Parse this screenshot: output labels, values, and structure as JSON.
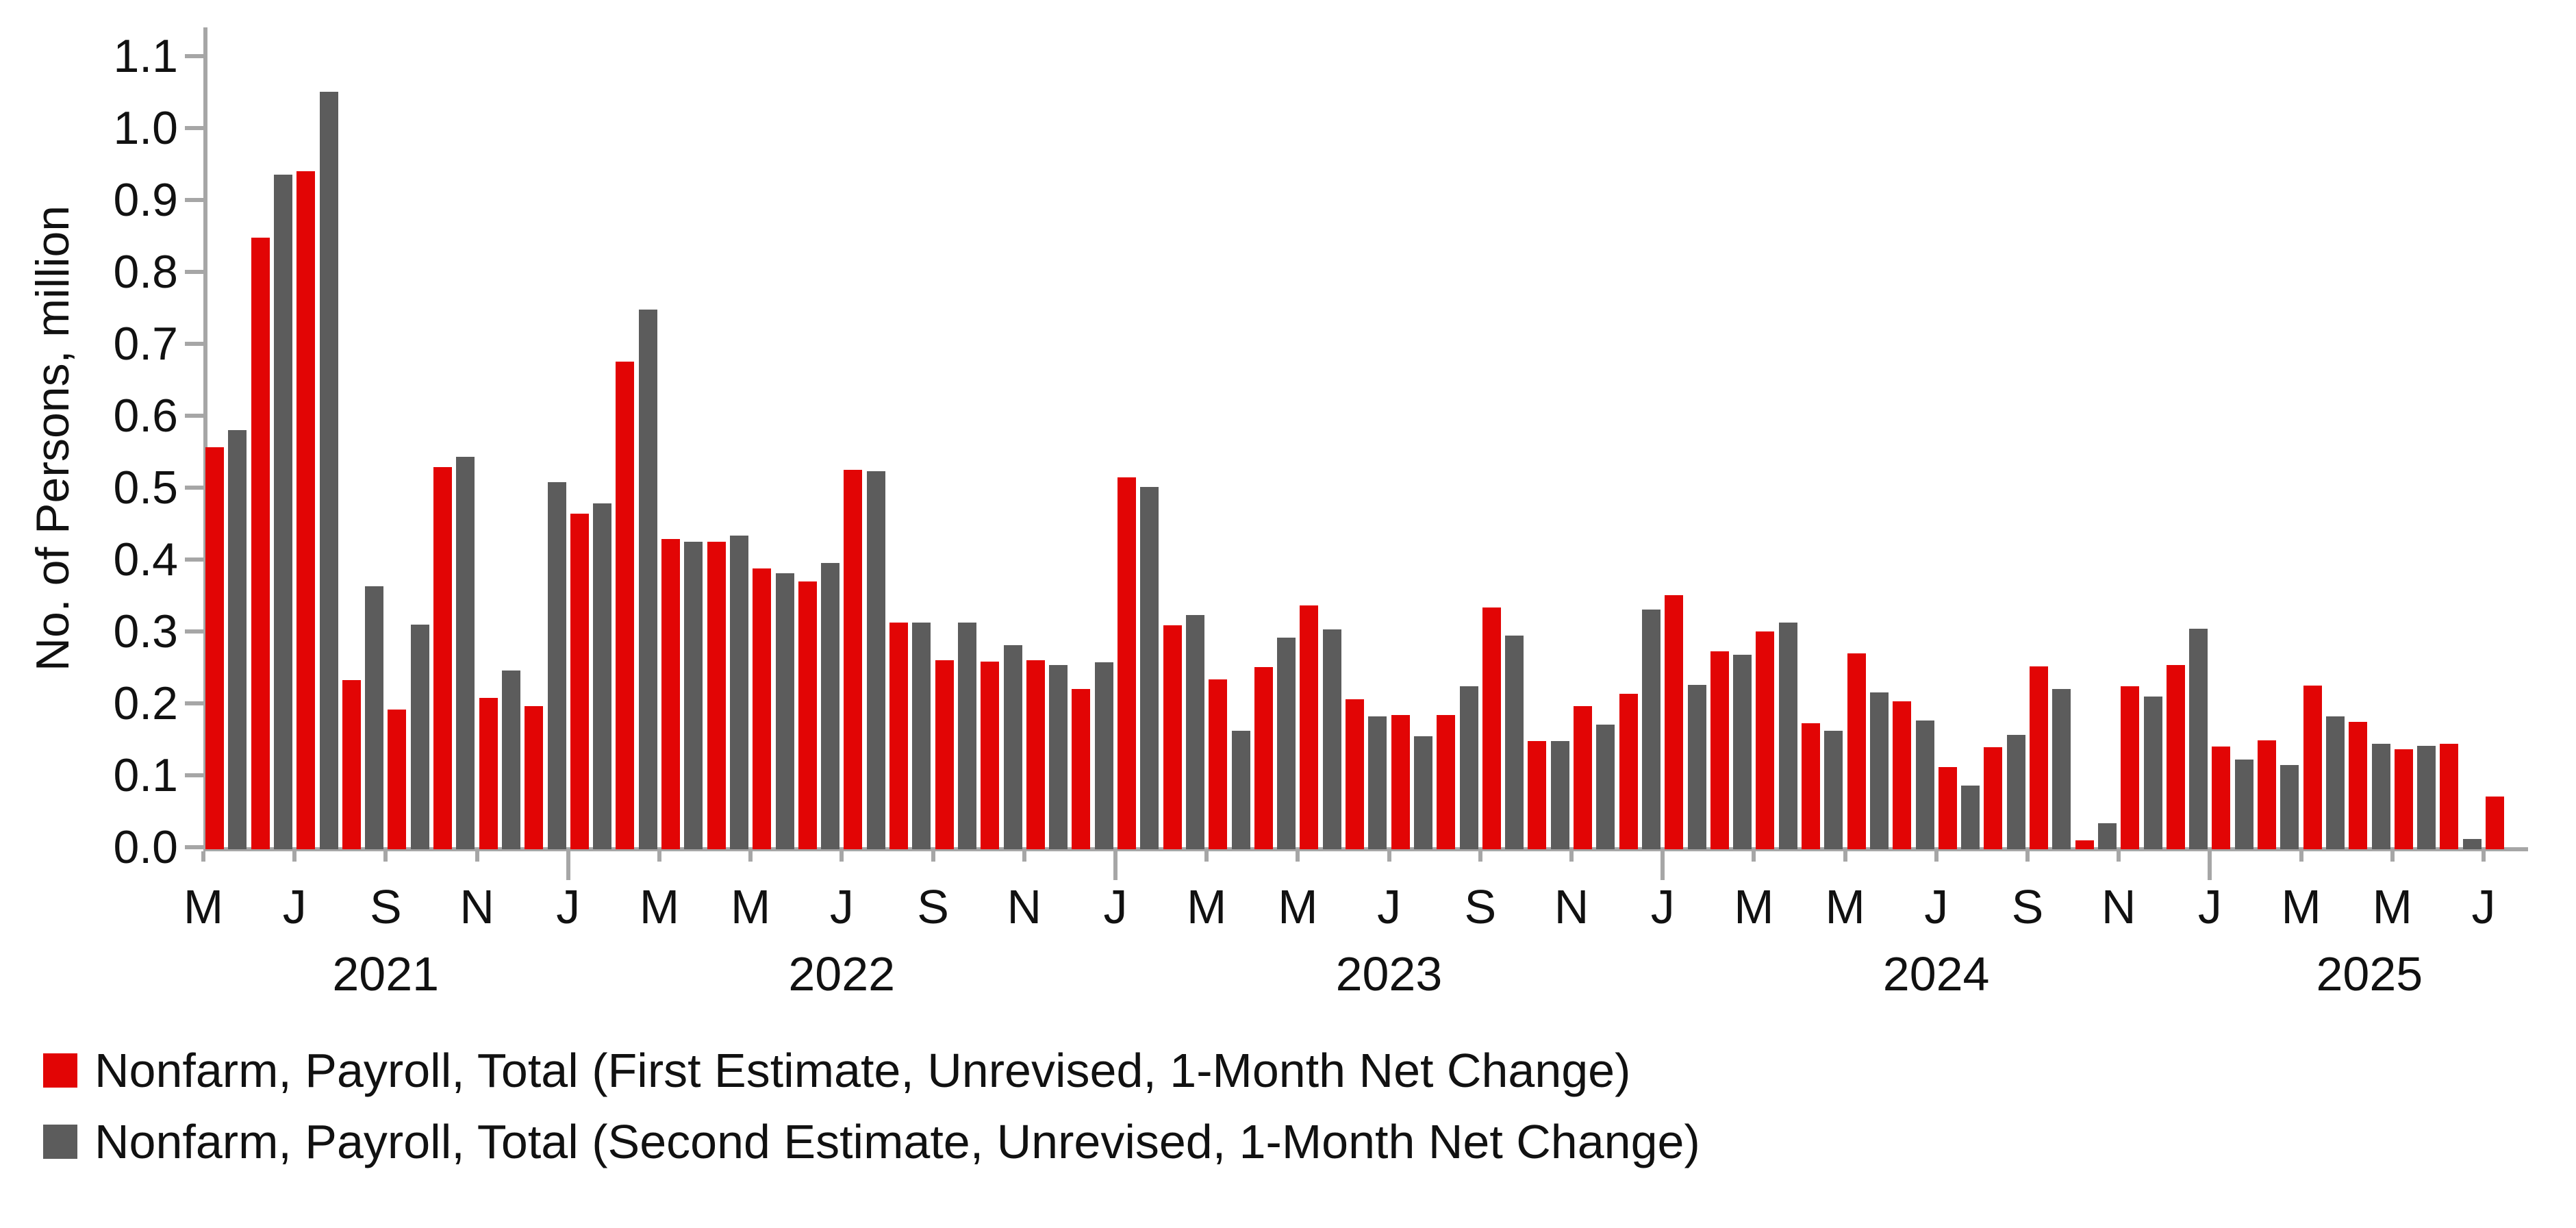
{
  "chart_data": {
    "type": "bar",
    "title": "",
    "xlabel": "",
    "ylabel": "No. of Persons, million",
    "ylim": [
      0,
      1.14
    ],
    "grid": false,
    "legend_position": "bottom-left",
    "background_color": "#ffffff",
    "axis_color": "#a6a6a6",
    "text_color": "#111111",
    "y_ticks": [
      "0.0",
      "0.1",
      "0.2",
      "0.3",
      "0.4",
      "0.5",
      "0.6",
      "0.7",
      "0.8",
      "0.9",
      "1.0",
      "1.1"
    ],
    "categories": [
      "May 2021",
      "Jun 2021",
      "Jul 2021",
      "Aug 2021",
      "Sep 2021",
      "Oct 2021",
      "Nov 2021",
      "Dec 2021",
      "Jan 2022",
      "Feb 2022",
      "Mar 2022",
      "Apr 2022",
      "May 2022",
      "Jun 2022",
      "Jul 2022",
      "Aug 2022",
      "Sep 2022",
      "Oct 2022",
      "Nov 2022",
      "Dec 2022",
      "Jan 2023",
      "Feb 2023",
      "Mar 2023",
      "Apr 2023",
      "May 2023",
      "Jun 2023",
      "Jul 2023",
      "Aug 2023",
      "Sep 2023",
      "Oct 2023",
      "Nov 2023",
      "Dec 2023",
      "Jan 2024",
      "Feb 2024",
      "Mar 2024",
      "Apr 2024",
      "May 2024",
      "Jun 2024",
      "Jul 2024",
      "Aug 2024",
      "Sep 2024",
      "Oct 2024",
      "Nov 2024",
      "Dec 2024",
      "Jan 2025",
      "Feb 2025",
      "Mar 2025",
      "Apr 2025",
      "May 2025",
      "Jun 2025",
      "Jul 2025"
    ],
    "x_ticks": [
      {
        "i": 0,
        "label": "M",
        "major": false
      },
      {
        "i": 2,
        "label": "J",
        "major": false
      },
      {
        "i": 4,
        "label": "S",
        "major": false
      },
      {
        "i": 6,
        "label": "N",
        "major": false
      },
      {
        "i": 8,
        "label": "J",
        "major": true
      },
      {
        "i": 10,
        "label": "M",
        "major": false
      },
      {
        "i": 12,
        "label": "M",
        "major": false
      },
      {
        "i": 14,
        "label": "J",
        "major": false
      },
      {
        "i": 16,
        "label": "S",
        "major": false
      },
      {
        "i": 18,
        "label": "N",
        "major": false
      },
      {
        "i": 20,
        "label": "J",
        "major": true
      },
      {
        "i": 22,
        "label": "M",
        "major": false
      },
      {
        "i": 24,
        "label": "M",
        "major": false
      },
      {
        "i": 26,
        "label": "J",
        "major": false
      },
      {
        "i": 28,
        "label": "S",
        "major": false
      },
      {
        "i": 30,
        "label": "N",
        "major": false
      },
      {
        "i": 32,
        "label": "J",
        "major": true
      },
      {
        "i": 34,
        "label": "M",
        "major": false
      },
      {
        "i": 36,
        "label": "M",
        "major": false
      },
      {
        "i": 38,
        "label": "J",
        "major": false
      },
      {
        "i": 40,
        "label": "S",
        "major": false
      },
      {
        "i": 42,
        "label": "N",
        "major": false
      },
      {
        "i": 44,
        "label": "J",
        "major": true
      },
      {
        "i": 46,
        "label": "M",
        "major": false
      },
      {
        "i": 48,
        "label": "M",
        "major": false
      },
      {
        "i": 50,
        "label": "J",
        "major": false
      }
    ],
    "year_labels": [
      {
        "label": "2021",
        "from": 0,
        "to": 7
      },
      {
        "label": "2022",
        "from": 8,
        "to": 19
      },
      {
        "label": "2023",
        "from": 20,
        "to": 31
      },
      {
        "label": "2024",
        "from": 32,
        "to": 43
      },
      {
        "label": "2025",
        "from": 44,
        "to": 50
      }
    ],
    "series": [
      {
        "name": "Nonfarm, Payroll, Total (First Estimate, Unrevised, 1-Month Net Change)",
        "color": "#e20505",
        "values": [
          0.559,
          0.85,
          0.943,
          0.235,
          0.194,
          0.531,
          0.21,
          0.199,
          0.467,
          0.678,
          0.431,
          0.428,
          0.39,
          0.372,
          0.528,
          0.315,
          0.263,
          0.261,
          0.263,
          0.223,
          0.517,
          0.311,
          0.236,
          0.253,
          0.339,
          0.209,
          0.187,
          0.187,
          0.336,
          0.15,
          0.199,
          0.216,
          0.353,
          0.275,
          0.303,
          0.175,
          0.272,
          0.206,
          0.114,
          0.142,
          0.254,
          0.012,
          0.227,
          0.256,
          0.143,
          0.151,
          0.228,
          0.177,
          0.139,
          0.147,
          0.073
        ]
      },
      {
        "name": "Nonfarm, Payroll, Total (Second Estimate, Unrevised, 1-Month Net Change)",
        "color": "#5c5c5c",
        "values": [
          0.583,
          0.938,
          1.053,
          0.366,
          0.312,
          0.546,
          0.249,
          0.51,
          0.481,
          0.75,
          0.428,
          0.436,
          0.384,
          0.398,
          0.526,
          0.315,
          0.315,
          0.284,
          0.256,
          0.26,
          0.504,
          0.326,
          0.165,
          0.294,
          0.306,
          0.185,
          0.157,
          0.227,
          0.297,
          0.15,
          0.173,
          0.333,
          0.229,
          0.27,
          0.315,
          0.165,
          0.218,
          0.179,
          0.089,
          0.159,
          0.223,
          0.036,
          0.212,
          0.307,
          0.125,
          0.117,
          0.185,
          0.147,
          0.144,
          0.014,
          null
        ]
      }
    ]
  }
}
